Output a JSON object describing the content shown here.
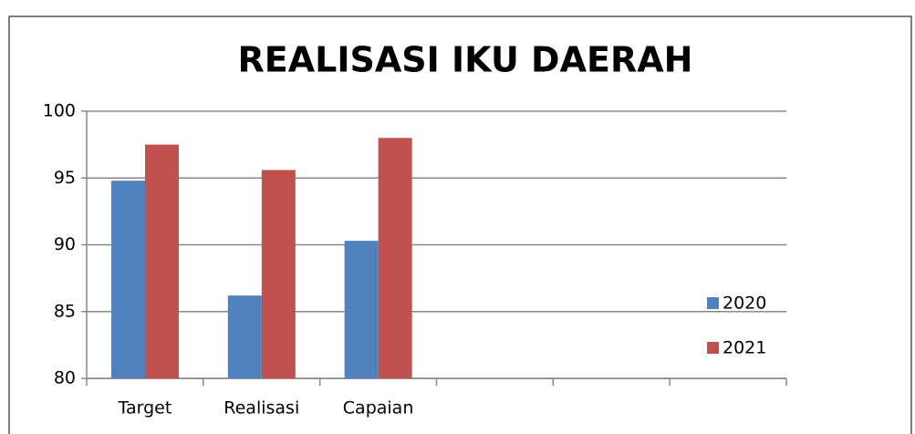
{
  "chart_data": {
    "type": "bar",
    "title": "REALISASI IKU DAERAH",
    "categories": [
      "Target",
      "Realisasi",
      "Capaian",
      null,
      null,
      null
    ],
    "series": [
      {
        "name": "2020",
        "color": "#4f81bd",
        "values": [
          94.8,
          86.2,
          90.3,
          null,
          null,
          null
        ]
      },
      {
        "name": "2021",
        "color": "#c0504d",
        "values": [
          97.5,
          95.6,
          98.0,
          null,
          null,
          null
        ]
      }
    ],
    "ylim": [
      80,
      100
    ],
    "yticks": [
      80,
      85,
      90,
      95,
      100
    ],
    "grid": true,
    "legend": "right"
  }
}
